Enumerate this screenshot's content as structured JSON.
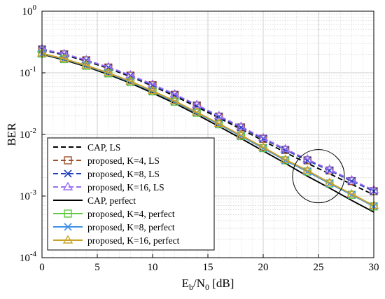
{
  "chart_data": {
    "type": "line",
    "title": "",
    "xlabel": {
      "main": "E",
      "sub1": "b",
      "mid": "/N",
      "sub2": "0",
      "unit": " [dB]"
    },
    "ylabel": "BER",
    "xlim": [
      0,
      30
    ],
    "ylim": [
      0.0001,
      1
    ],
    "yscale": "log",
    "grid": true,
    "legend_position": "bottom-left",
    "x_ticks": [
      0,
      5,
      10,
      15,
      20,
      25,
      30
    ],
    "y_ticks": [
      {
        "value": 1,
        "base": "10",
        "exp": "0"
      },
      {
        "value": 0.1,
        "base": "10",
        "exp": "-1"
      },
      {
        "value": 0.01,
        "base": "10",
        "exp": "-2"
      },
      {
        "value": 0.001,
        "base": "10",
        "exp": "-3"
      },
      {
        "value": 0.0001,
        "base": "10",
        "exp": "-4"
      }
    ],
    "x": [
      0,
      2,
      4,
      6,
      8,
      10,
      12,
      14,
      16,
      18,
      20,
      22,
      24,
      26,
      28,
      30
    ],
    "series": [
      {
        "name": "CAP, LS",
        "color": "#000000",
        "dash": "dashed",
        "marker": "none",
        "values": [
          0.235,
          0.195,
          0.155,
          0.118,
          0.087,
          0.061,
          0.042,
          0.028,
          0.0185,
          0.0122,
          0.0079,
          0.0051,
          0.0034,
          0.0023,
          0.00155,
          0.00105
        ]
      },
      {
        "name": "proposed, K=4, LS",
        "color": "#a0522d",
        "dash": "dashed",
        "marker": "square",
        "values": [
          0.24,
          0.2,
          0.16,
          0.122,
          0.09,
          0.063,
          0.044,
          0.0295,
          0.0195,
          0.013,
          0.0085,
          0.0056,
          0.0038,
          0.0026,
          0.00175,
          0.0012
        ]
      },
      {
        "name": "proposed, K=8, LS",
        "color": "#1f3fbf",
        "dash": "dashed",
        "marker": "x",
        "values": [
          0.24,
          0.2,
          0.16,
          0.122,
          0.09,
          0.063,
          0.044,
          0.0295,
          0.0195,
          0.013,
          0.0085,
          0.0056,
          0.0038,
          0.0026,
          0.00175,
          0.0012
        ]
      },
      {
        "name": "proposed, K=16, LS",
        "color": "#9b6ef3",
        "dash": "dashed",
        "marker": "triangle",
        "values": [
          0.245,
          0.203,
          0.162,
          0.124,
          0.092,
          0.065,
          0.045,
          0.0303,
          0.02,
          0.0134,
          0.0088,
          0.0058,
          0.00395,
          0.0027,
          0.00182,
          0.00125
        ]
      },
      {
        "name": "CAP, perfect",
        "color": "#000000",
        "dash": "solid",
        "marker": "none",
        "values": [
          0.2,
          0.162,
          0.126,
          0.094,
          0.068,
          0.047,
          0.032,
          0.021,
          0.0135,
          0.0086,
          0.0054,
          0.0034,
          0.0021,
          0.00135,
          0.00085,
          0.00055
        ]
      },
      {
        "name": "proposed, K=4, perfect",
        "color": "#5cc93e",
        "dash": "solid",
        "marker": "square",
        "values": [
          0.205,
          0.167,
          0.13,
          0.098,
          0.071,
          0.05,
          0.034,
          0.0225,
          0.0146,
          0.0094,
          0.006,
          0.0038,
          0.0025,
          0.0016,
          0.00105,
          0.00068
        ]
      },
      {
        "name": "proposed, K=8, perfect",
        "color": "#3f8fe8",
        "dash": "solid",
        "marker": "x",
        "values": [
          0.205,
          0.167,
          0.13,
          0.098,
          0.071,
          0.05,
          0.034,
          0.0225,
          0.0146,
          0.0094,
          0.006,
          0.0038,
          0.0025,
          0.0016,
          0.00105,
          0.00068
        ]
      },
      {
        "name": "proposed, K=16, perfect",
        "color": "#c9a227",
        "dash": "solid",
        "marker": "triangle",
        "values": [
          0.207,
          0.169,
          0.132,
          0.1,
          0.073,
          0.051,
          0.035,
          0.023,
          0.015,
          0.0097,
          0.0062,
          0.0039,
          0.0026,
          0.00165,
          0.00108,
          0.0007
        ]
      }
    ],
    "annotation": {
      "type": "ellipse",
      "center_x": 25,
      "center_y": 0.0021
    }
  }
}
